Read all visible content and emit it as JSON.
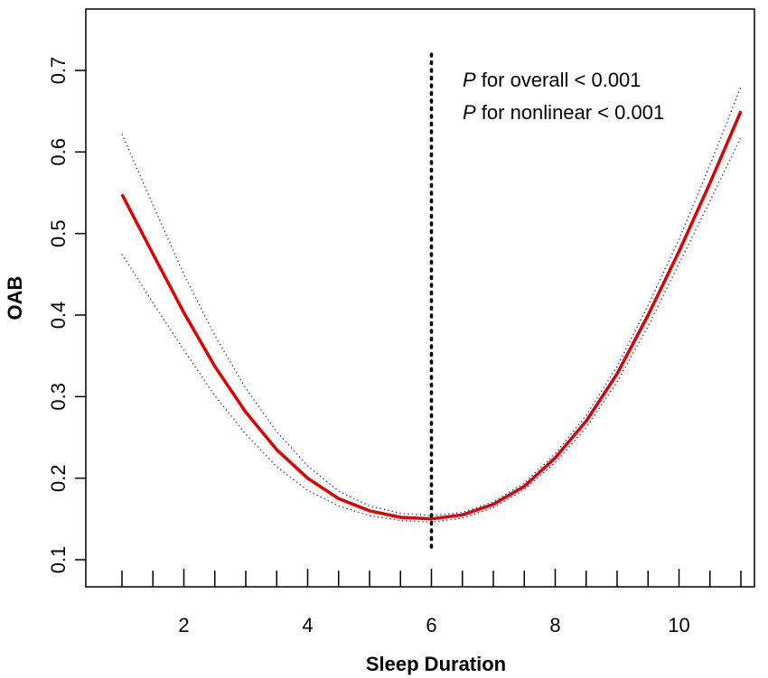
{
  "chart_data": {
    "type": "line",
    "title": "",
    "xlabel": "Sleep Duration",
    "ylabel": "OAB",
    "xlim": [
      1,
      11
    ],
    "ylim": [
      0.1,
      0.7
    ],
    "x_ticks": [
      2,
      4,
      6,
      8,
      10
    ],
    "x_ticks_all": [
      1,
      1.5,
      2,
      2.5,
      3,
      3.5,
      4,
      4.5,
      5,
      5.5,
      6,
      6.5,
      7,
      7.5,
      8,
      8.5,
      9,
      9.5,
      10,
      10.5,
      11
    ],
    "y_ticks": [
      0.1,
      0.2,
      0.3,
      0.4,
      0.5,
      0.6,
      0.7
    ],
    "grid": false,
    "reference_line_x": 6,
    "annotations": [
      {
        "italic": "P",
        "text": " for overall < 0.001"
      },
      {
        "italic": "P",
        "text": " for nonlinear < 0.001"
      }
    ],
    "series": [
      {
        "role": "estimate",
        "color": "#e00000",
        "x": [
          1,
          1.5,
          2,
          2.5,
          3,
          3.5,
          4,
          4.5,
          5,
          5.5,
          6,
          6.5,
          7,
          7.5,
          8,
          8.5,
          9,
          9.5,
          10,
          10.5,
          11
        ],
        "y": [
          0.548,
          0.475,
          0.403,
          0.337,
          0.281,
          0.235,
          0.2,
          0.175,
          0.16,
          0.152,
          0.15,
          0.155,
          0.168,
          0.19,
          0.225,
          0.27,
          0.328,
          0.4,
          0.478,
          0.562,
          0.65
        ]
      },
      {
        "role": "upper-ci",
        "color": "#4444cc",
        "x": [
          1,
          1.5,
          2,
          2.5,
          3,
          3.5,
          4,
          4.5,
          5,
          5.5,
          6,
          6.5,
          7,
          7.5,
          8,
          8.5,
          9,
          9.5,
          10,
          10.5,
          11
        ],
        "y": [
          0.622,
          0.535,
          0.45,
          0.375,
          0.31,
          0.257,
          0.215,
          0.184,
          0.166,
          0.157,
          0.154,
          0.158,
          0.171,
          0.194,
          0.23,
          0.277,
          0.337,
          0.412,
          0.493,
          0.584,
          0.68
        ]
      },
      {
        "role": "lower-ci",
        "color": "#4444cc",
        "x": [
          1,
          1.5,
          2,
          2.5,
          3,
          3.5,
          4,
          4.5,
          5,
          5.5,
          6,
          6.5,
          7,
          7.5,
          8,
          8.5,
          9,
          9.5,
          10,
          10.5,
          11
        ],
        "y": [
          0.475,
          0.415,
          0.357,
          0.301,
          0.254,
          0.214,
          0.185,
          0.166,
          0.154,
          0.148,
          0.146,
          0.151,
          0.164,
          0.186,
          0.219,
          0.262,
          0.318,
          0.386,
          0.463,
          0.54,
          0.618
        ]
      }
    ]
  }
}
